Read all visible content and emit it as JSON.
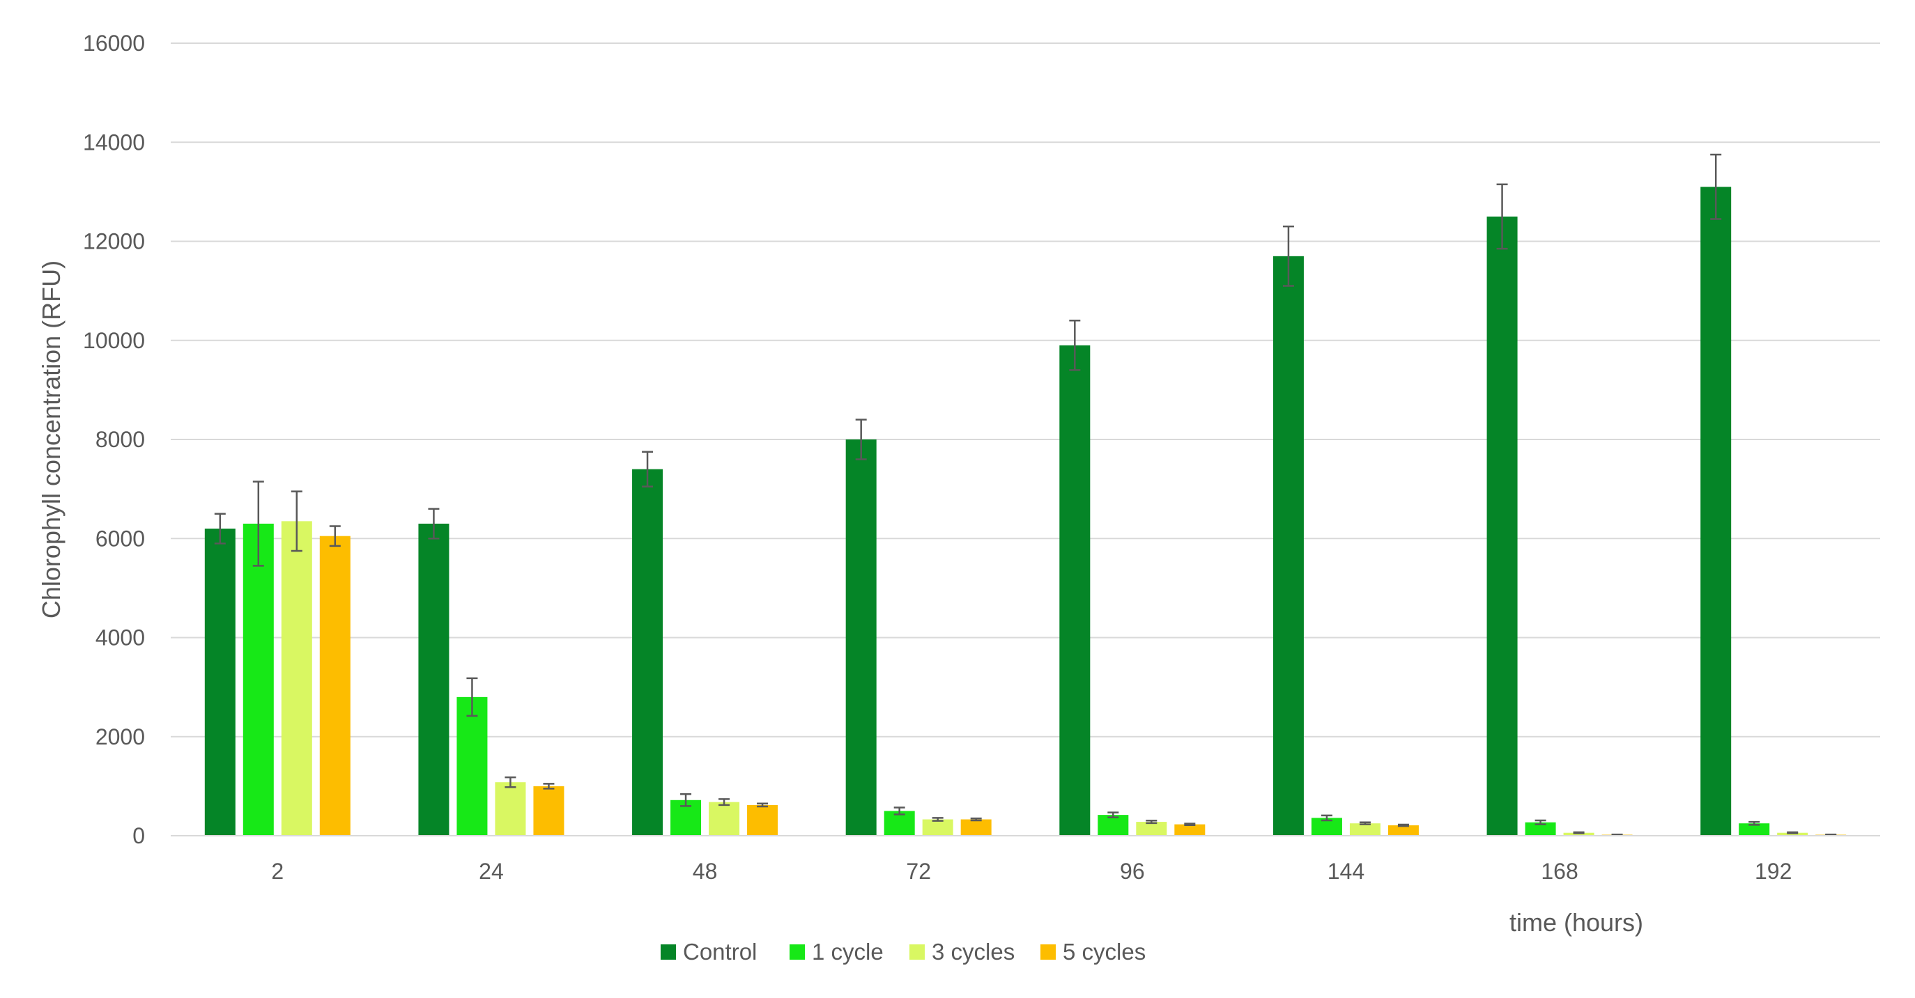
{
  "chart_data": {
    "type": "bar",
    "title": "",
    "xlabel": "time (hours)",
    "ylabel": "Chlorophyll concentration (RFU)",
    "ylim": [
      0,
      16000
    ],
    "yticks": [
      0,
      2000,
      4000,
      6000,
      8000,
      10000,
      12000,
      14000,
      16000
    ],
    "grid": true,
    "legend_position": "bottom",
    "categories": [
      "2",
      "24",
      "48",
      "72",
      "96",
      "144",
      "168",
      "192"
    ],
    "series": [
      {
        "name": "Control",
        "color": "#058527",
        "values": [
          6200,
          6300,
          7400,
          8000,
          9900,
          11700,
          12500,
          13100
        ],
        "errors": [
          300,
          300,
          350,
          400,
          500,
          600,
          650,
          650
        ]
      },
      {
        "name": "1 cycle",
        "color": "#17e817",
        "values": [
          6300,
          2800,
          720,
          500,
          420,
          360,
          270,
          250
        ],
        "errors": [
          850,
          380,
          120,
          70,
          50,
          50,
          40,
          30
        ]
      },
      {
        "name": "3 cycles",
        "color": "#d9f762",
        "values": [
          6350,
          1080,
          680,
          330,
          280,
          250,
          60,
          60
        ],
        "errors": [
          600,
          100,
          60,
          30,
          25,
          20,
          10,
          10
        ]
      },
      {
        "name": "5 cycles",
        "color": "#fdbd00",
        "values": [
          6050,
          1000,
          620,
          330,
          230,
          210,
          20,
          20
        ],
        "errors": [
          200,
          50,
          30,
          20,
          15,
          15,
          5,
          5
        ]
      }
    ]
  }
}
